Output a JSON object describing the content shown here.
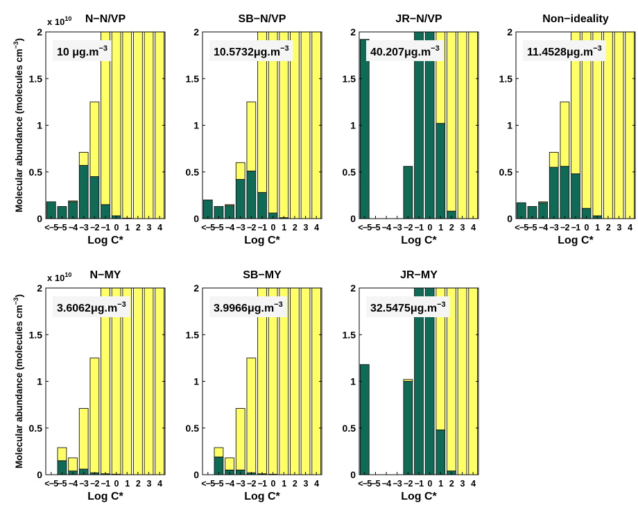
{
  "figure": {
    "ylabel": "Molecular abundance (molecules cm",
    "ylabel_sup": "−3",
    "scale_base": "x 10",
    "scale_exp": "10",
    "xlabel": "Log C*",
    "colors": {
      "condensed": "#0f6b55",
      "gas": "#ffff66",
      "outline": "#111111"
    }
  },
  "chart_data": [
    {
      "type": "bar",
      "stacked": true,
      "title": "N−N/VP",
      "ylim": [
        0,
        2
      ],
      "yticks": [
        "0",
        "0.5",
        "1",
        "1.5",
        "2"
      ],
      "categories": [
        "<−5",
        "−5",
        "−4",
        "−3",
        "−2",
        "−1",
        "0",
        "1",
        "2",
        "3",
        "4"
      ],
      "annotation": {
        "text": "10 μg.m",
        "sup": "−3"
      },
      "series": [
        {
          "values": [
            0.18,
            0.13,
            0.18,
            0.57,
            0.45,
            0.15,
            0.03,
            0.005,
            0,
            0,
            0
          ]
        },
        {
          "values": [
            0,
            0,
            0.01,
            0.14,
            0.8,
            1.85,
            1.97,
            1.995,
            2,
            2,
            2
          ]
        }
      ]
    },
    {
      "type": "bar",
      "stacked": true,
      "title": "SB−N/VP",
      "ylim": [
        0,
        2
      ],
      "yticks": [
        "0",
        "0.5",
        "1",
        "1.5",
        "2"
      ],
      "categories": [
        "<−5",
        "−5",
        "−4",
        "−3",
        "−2",
        "−1",
        "0",
        "1",
        "2",
        "3",
        "4"
      ],
      "annotation": {
        "text": "10.5732μg.m",
        "sup": "−3"
      },
      "series": [
        {
          "values": [
            0.2,
            0.13,
            0.14,
            0.42,
            0.51,
            0.28,
            0.06,
            0.01,
            0,
            0,
            0
          ]
        },
        {
          "values": [
            0,
            0,
            0.01,
            0.18,
            0.74,
            1.72,
            1.94,
            1.99,
            2,
            2,
            2
          ]
        }
      ]
    },
    {
      "type": "bar",
      "stacked": true,
      "title": "JR−N/VP",
      "ylim": [
        0,
        2
      ],
      "yticks": [
        "0",
        "0.5",
        "1",
        "1.5",
        "2"
      ],
      "categories": [
        "<−5",
        "−5",
        "−4",
        "−3",
        "−2",
        "−1",
        "0",
        "1",
        "2",
        "3",
        "4"
      ],
      "annotation": {
        "text": "40.207μg.m",
        "sup": "−3"
      },
      "series": [
        {
          "values": [
            1.92,
            0,
            0,
            0,
            0.56,
            2,
            2,
            1.02,
            0.08,
            0,
            0
          ]
        },
        {
          "values": [
            0,
            0,
            0,
            0,
            0,
            0,
            0,
            0.98,
            1.92,
            2,
            2
          ]
        }
      ]
    },
    {
      "type": "bar",
      "stacked": true,
      "title": "Non−ideality",
      "ylim": [
        0,
        2
      ],
      "yticks": [
        "0",
        "0.5",
        "1",
        "1.5",
        "2"
      ],
      "categories": [
        "<−5",
        "−5",
        "−4",
        "−3",
        "−2",
        "−1",
        "0",
        "1",
        "2",
        "3",
        "4"
      ],
      "annotation": {
        "text": "11.4528μg.m",
        "sup": "−3"
      },
      "series": [
        {
          "values": [
            0.17,
            0.13,
            0.17,
            0.55,
            0.56,
            0.48,
            0.11,
            0.03,
            0,
            0,
            0
          ]
        },
        {
          "values": [
            0,
            0,
            0.01,
            0.16,
            0.69,
            1.52,
            1.89,
            1.97,
            2,
            2,
            2
          ]
        }
      ]
    },
    {
      "type": "bar",
      "stacked": true,
      "title": "N−MY",
      "ylim": [
        0,
        2
      ],
      "yticks": [
        "0",
        "0.5",
        "1",
        "1.5",
        "2"
      ],
      "categories": [
        "<−5",
        "−5",
        "−4",
        "−3",
        "−2",
        "−1",
        "0",
        "1",
        "2",
        "3",
        "4"
      ],
      "annotation": {
        "text": "3.6062μg.m",
        "sup": "−3"
      },
      "series": [
        {
          "values": [
            0,
            0.15,
            0.04,
            0.06,
            0.02,
            0.01,
            0.005,
            0,
            0,
            0,
            0
          ]
        },
        {
          "values": [
            0,
            0.14,
            0.14,
            0.65,
            1.23,
            1.99,
            1.995,
            2,
            2,
            2,
            2
          ]
        }
      ]
    },
    {
      "type": "bar",
      "stacked": true,
      "title": "SB−MY",
      "ylim": [
        0,
        2
      ],
      "yticks": [
        "0",
        "0.5",
        "1",
        "1.5",
        "2"
      ],
      "categories": [
        "<−5",
        "−5",
        "−4",
        "−3",
        "−2",
        "−1",
        "0",
        "1",
        "2",
        "3",
        "4"
      ],
      "annotation": {
        "text": "3.9966μg.m",
        "sup": "−3"
      },
      "series": [
        {
          "values": [
            0,
            0.19,
            0.05,
            0.05,
            0.02,
            0.01,
            0.005,
            0,
            0,
            0,
            0
          ]
        },
        {
          "values": [
            0,
            0.1,
            0.13,
            0.66,
            1.23,
            1.99,
            1.995,
            2,
            2,
            2,
            2
          ]
        }
      ]
    },
    {
      "type": "bar",
      "stacked": true,
      "title": "JR−MY",
      "ylim": [
        0,
        2
      ],
      "yticks": [
        "0",
        "0.5",
        "1",
        "1.5",
        "2"
      ],
      "categories": [
        "<−5",
        "−5",
        "−4",
        "−3",
        "−2",
        "−1",
        "0",
        "1",
        "2",
        "3",
        "4"
      ],
      "annotation": {
        "text": "32.5475μg.m",
        "sup": "−3"
      },
      "series": [
        {
          "values": [
            1.18,
            0,
            0,
            0,
            1,
            2,
            2,
            0.48,
            0.04,
            0,
            0
          ]
        },
        {
          "values": [
            0,
            0,
            0,
            0,
            0.02,
            0,
            0,
            1.52,
            1.96,
            2,
            2
          ]
        }
      ]
    }
  ]
}
